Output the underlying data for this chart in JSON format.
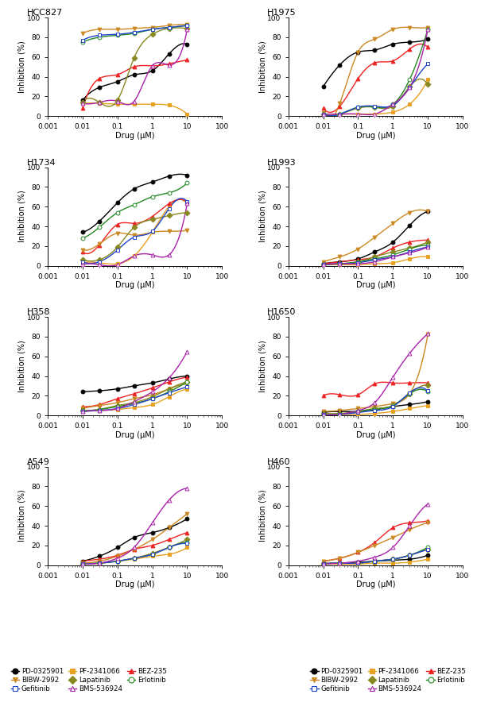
{
  "panel_titles": [
    "HCC827",
    "H1975",
    "H1734",
    "H1993",
    "H358",
    "H1650",
    "A549",
    "H460"
  ],
  "xlim": [
    0.001,
    100
  ],
  "ylim": [
    0,
    100
  ],
  "xlabel": "Drug (μM)",
  "ylabel": "Inhibition (%)",
  "drugs": [
    "PD-0325901",
    "PF-2341066",
    "BEZ-235",
    "BIBW-2992",
    "Lapatinib",
    "Erlotinib",
    "Gefitinib",
    "BMS-536924"
  ],
  "drug_styles": {
    "PD-0325901": {
      "color": "#000000",
      "marker": "o",
      "filled": true
    },
    "PF-2341066": {
      "color": "#E8A020",
      "marker": "s",
      "filled": true
    },
    "BEZ-235": {
      "color": "#EE2222",
      "marker": "^",
      "filled": true
    },
    "BIBW-2992": {
      "color": "#CC8822",
      "marker": "v",
      "filled": true
    },
    "Lapatinib": {
      "color": "#888820",
      "marker": "D",
      "filled": true
    },
    "Erlotinib": {
      "color": "#228822",
      "marker": "o",
      "filled": false
    },
    "Gefitinib": {
      "color": "#2244CC",
      "marker": "s",
      "filled": false
    },
    "BMS-536924": {
      "color": "#AA22AA",
      "marker": "^",
      "filled": false
    }
  },
  "x_vals": [
    0.01,
    0.03,
    0.1,
    0.3,
    1.0,
    3.0,
    10.0
  ],
  "series": {
    "HCC827": {
      "PD-0325901": [
        16,
        29,
        35,
        42,
        46,
        63,
        73
      ],
      "PF-2341066": [
        13,
        13,
        12,
        12,
        12,
        11,
        2
      ],
      "BEZ-235": [
        8,
        38,
        42,
        50,
        51,
        53,
        57
      ],
      "BIBW-2992": [
        84,
        88,
        88,
        89,
        90,
        92,
        93
      ],
      "Lapatinib": [
        14,
        14,
        16,
        59,
        83,
        89,
        89
      ],
      "Erlotinib": [
        75,
        80,
        82,
        84,
        88,
        90,
        92
      ],
      "Gefitinib": [
        77,
        82,
        83,
        85,
        88,
        90,
        92
      ],
      "BMS-536924": [
        13,
        14,
        15,
        15,
        51,
        52,
        88
      ]
    },
    "H1975": {
      "PD-0325901": [
        30,
        52,
        65,
        67,
        73,
        75,
        78
      ],
      "PF-2341066": [
        2,
        2,
        2,
        2,
        4,
        12,
        37
      ],
      "BEZ-235": [
        8,
        10,
        38,
        54,
        56,
        68,
        70
      ],
      "BIBW-2992": [
        3,
        13,
        65,
        78,
        88,
        90,
        90
      ],
      "Lapatinib": [
        2,
        2,
        8,
        9,
        10,
        30,
        32
      ],
      "Erlotinib": [
        2,
        2,
        9,
        9,
        12,
        37,
        88
      ],
      "Gefitinib": [
        2,
        2,
        9,
        10,
        11,
        29,
        53
      ],
      "BMS-536924": [
        2,
        2,
        2,
        2,
        12,
        29,
        88
      ]
    },
    "H1734": {
      "PD-0325901": [
        34,
        45,
        64,
        78,
        85,
        91,
        92
      ],
      "PF-2341066": [
        3,
        3,
        2,
        10,
        34,
        60,
        63
      ],
      "BEZ-235": [
        14,
        21,
        42,
        43,
        50,
        63,
        65
      ],
      "BIBW-2992": [
        16,
        22,
        33,
        31,
        34,
        35,
        36
      ],
      "Lapatinib": [
        6,
        6,
        19,
        39,
        47,
        51,
        54
      ],
      "Erlotinib": [
        28,
        39,
        54,
        62,
        70,
        74,
        84
      ],
      "Gefitinib": [
        4,
        4,
        16,
        29,
        35,
        58,
        65
      ],
      "BMS-536924": [
        1,
        1,
        1,
        10,
        11,
        11,
        63
      ]
    },
    "H1993": {
      "PD-0325901": [
        2,
        4,
        7,
        14,
        24,
        41,
        55
      ],
      "PF-2341066": [
        1,
        1,
        1,
        2,
        3,
        7,
        9
      ],
      "BEZ-235": [
        2,
        4,
        6,
        9,
        18,
        24,
        26
      ],
      "BIBW-2992": [
        4,
        9,
        17,
        29,
        43,
        54,
        55
      ],
      "Lapatinib": [
        1,
        2,
        4,
        9,
        14,
        18,
        24
      ],
      "Erlotinib": [
        1,
        2,
        4,
        7,
        11,
        17,
        21
      ],
      "Gefitinib": [
        1,
        2,
        3,
        6,
        9,
        14,
        19
      ],
      "BMS-536924": [
        1,
        2,
        2,
        4,
        9,
        13,
        19
      ]
    },
    "H358": {
      "PD-0325901": [
        24,
        25,
        27,
        30,
        33,
        37,
        40
      ],
      "PF-2341066": [
        4,
        5,
        6,
        8,
        11,
        19,
        27
      ],
      "BEZ-235": [
        9,
        11,
        17,
        22,
        28,
        34,
        39
      ],
      "BIBW-2992": [
        7,
        10,
        13,
        17,
        21,
        27,
        32
      ],
      "Lapatinib": [
        5,
        6,
        10,
        13,
        19,
        27,
        34
      ],
      "Erlotinib": [
        5,
        6,
        9,
        12,
        17,
        24,
        34
      ],
      "Gefitinib": [
        4,
        5,
        7,
        11,
        17,
        23,
        29
      ],
      "BMS-536924": [
        4,
        5,
        7,
        14,
        24,
        38,
        65
      ]
    },
    "H1650": {
      "PD-0325901": [
        3,
        4,
        4,
        6,
        9,
        11,
        14
      ],
      "PF-2341066": [
        1,
        1,
        1,
        2,
        4,
        7,
        10
      ],
      "BEZ-235": [
        20,
        21,
        21,
        32,
        33,
        33,
        33
      ],
      "BIBW-2992": [
        4,
        5,
        7,
        9,
        12,
        22,
        82
      ],
      "Lapatinib": [
        2,
        2,
        4,
        7,
        10,
        22,
        31
      ],
      "Erlotinib": [
        1,
        1,
        4,
        6,
        10,
        22,
        24
      ],
      "Gefitinib": [
        1,
        1,
        3,
        5,
        9,
        23,
        25
      ],
      "BMS-536924": [
        1,
        1,
        5,
        13,
        39,
        63,
        83
      ]
    },
    "A549": {
      "PD-0325901": [
        4,
        9,
        18,
        28,
        33,
        38,
        47
      ],
      "PF-2341066": [
        1,
        2,
        4,
        6,
        9,
        11,
        18
      ],
      "BEZ-235": [
        4,
        6,
        10,
        16,
        20,
        26,
        33
      ],
      "BIBW-2992": [
        2,
        4,
        9,
        16,
        26,
        38,
        52
      ],
      "Lapatinib": [
        1,
        2,
        4,
        7,
        12,
        18,
        26
      ],
      "Erlotinib": [
        1,
        2,
        4,
        7,
        11,
        18,
        23
      ],
      "Gefitinib": [
        1,
        2,
        4,
        7,
        11,
        18,
        22
      ],
      "BMS-536924": [
        1,
        2,
        7,
        18,
        43,
        66,
        78
      ]
    },
    "H460": {
      "PD-0325901": [
        2,
        2,
        3,
        4,
        5,
        6,
        10
      ],
      "PF-2341066": [
        1,
        1,
        1,
        2,
        2,
        3,
        6
      ],
      "BEZ-235": [
        4,
        7,
        13,
        23,
        38,
        43,
        45
      ],
      "BIBW-2992": [
        4,
        7,
        13,
        20,
        28,
        36,
        43
      ],
      "Lapatinib": [
        1,
        2,
        2,
        4,
        6,
        10,
        16
      ],
      "Erlotinib": [
        1,
        2,
        2,
        4,
        6,
        10,
        18
      ],
      "Gefitinib": [
        1,
        2,
        2,
        4,
        6,
        10,
        16
      ],
      "BMS-536924": [
        1,
        2,
        4,
        8,
        18,
        40,
        62
      ]
    }
  }
}
